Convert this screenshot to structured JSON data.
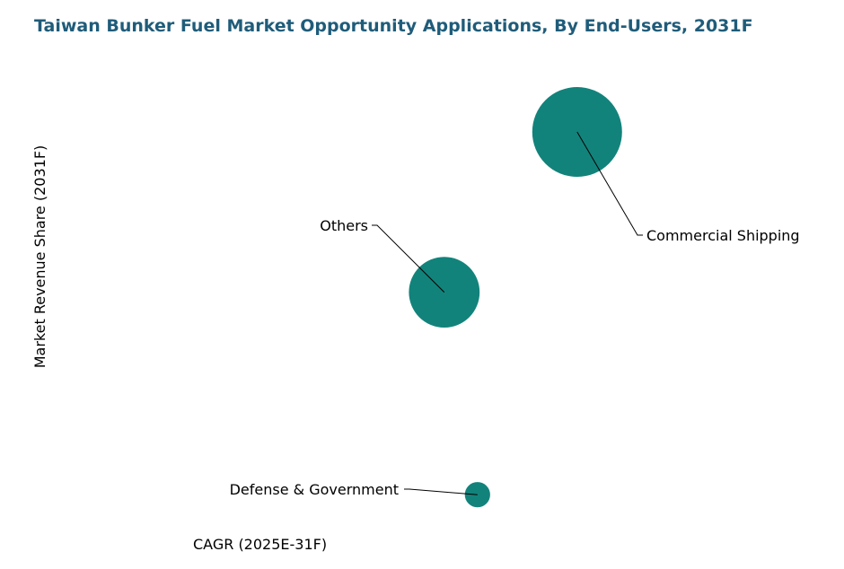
{
  "chart_data": {
    "type": "scatter",
    "title": "Taiwan Bunker Fuel Market Opportunity Applications, By End-Users, 2031F",
    "xlabel": "CAGR (2025E-31F)",
    "ylabel": "Market Revenue Share (2031F)",
    "grid": false,
    "legend": "none",
    "xlim": [
      0,
      100
    ],
    "ylim": [
      0,
      100
    ],
    "bubble_color": "#12837b",
    "series": [
      {
        "name": "End-Users",
        "points": [
          {
            "label": "Commercial Shipping",
            "x": 72,
            "y": 90,
            "size": 100
          },
          {
            "label": "Others",
            "x": 52,
            "y": 52,
            "size": 62
          },
          {
            "label": "Defense & Government",
            "x": 57,
            "y": 4,
            "size": 8
          }
        ]
      }
    ]
  }
}
